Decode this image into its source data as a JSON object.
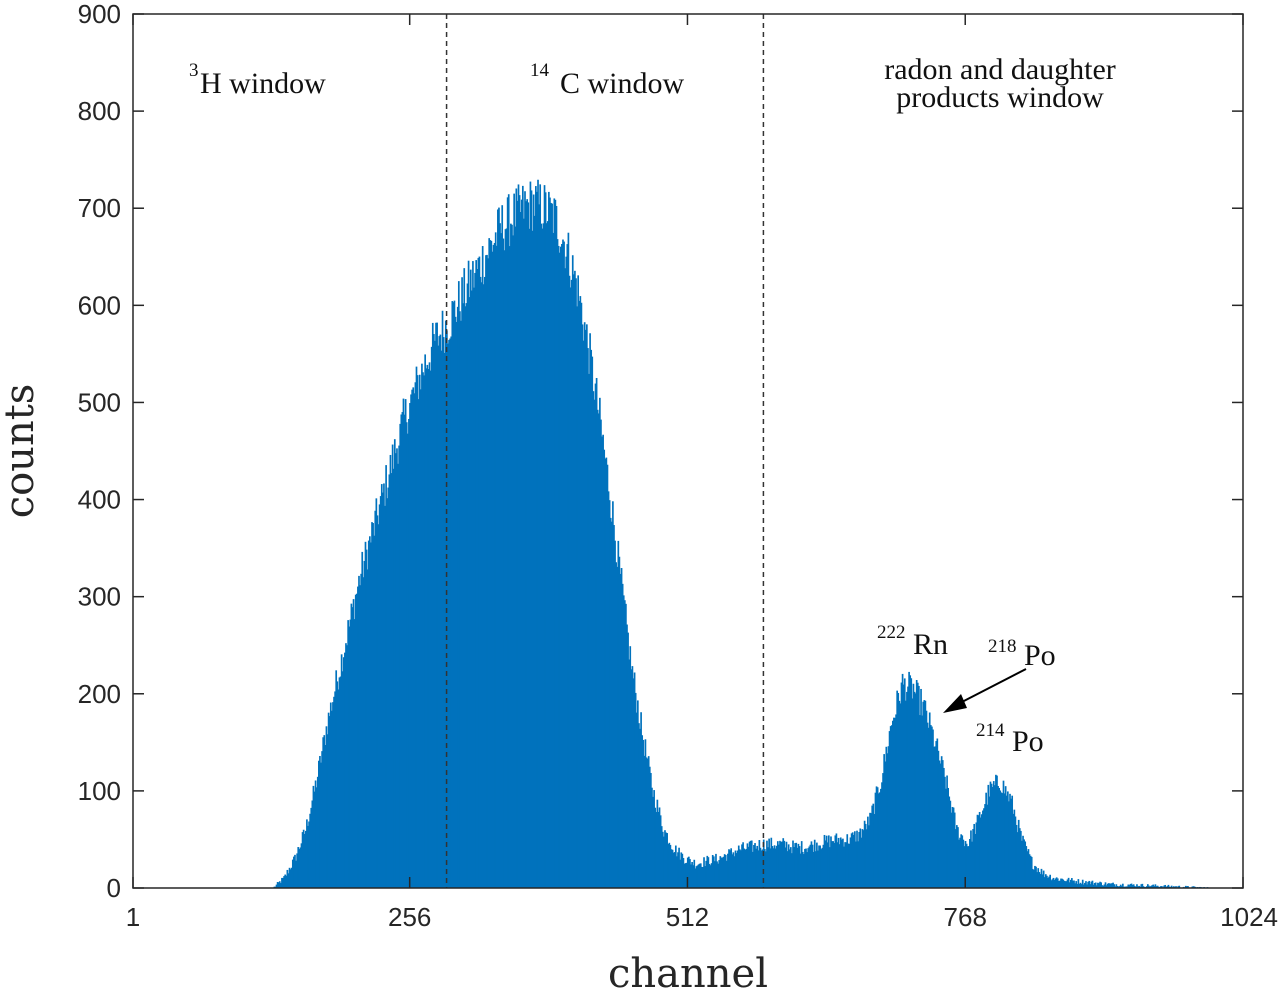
{
  "chart_data": {
    "type": "bar",
    "title": "",
    "xlabel": "channel",
    "ylabel": "counts",
    "xlim": [
      1,
      1024
    ],
    "ylim": [
      0,
      900
    ],
    "x_ticks": [
      "1",
      "256",
      "512",
      "768",
      "1024"
    ],
    "x_tick_values": [
      1,
      256,
      512,
      768,
      1024
    ],
    "y_ticks": [
      "0",
      "100",
      "200",
      "300",
      "400",
      "500",
      "600",
      "700",
      "800",
      "900"
    ],
    "y_tick_values": [
      0,
      100,
      200,
      300,
      400,
      500,
      600,
      700,
      800,
      900
    ],
    "bar_color": "#0072BD",
    "window_boundaries": [
      290,
      582
    ],
    "windows": [
      {
        "label_sup": "3",
        "label_main": "H window"
      },
      {
        "label_sup": "14",
        "label_main": "C window"
      },
      {
        "label_line1": "radon and daughter",
        "label_line2": "products window"
      }
    ],
    "peak_labels": [
      {
        "sup": "222",
        "main": "Rn",
        "channel": 728,
        "counts": 235
      },
      {
        "sup": "218",
        "main": "Po",
        "channel": 748,
        "counts": 175
      },
      {
        "sup": "214",
        "main": "Po",
        "channel": 810,
        "counts": 130
      }
    ],
    "series": [
      {
        "channels": [
          1,
          130,
          140,
          150,
          160,
          170,
          180,
          190,
          200,
          210,
          220,
          230,
          240,
          250,
          260,
          270,
          280,
          290,
          300,
          310,
          320,
          330,
          340,
          350,
          360,
          370,
          380,
          390,
          400,
          410,
          420,
          430,
          440,
          450,
          460,
          470,
          480,
          490,
          500,
          510,
          520,
          530,
          540,
          550,
          560,
          570,
          580,
          590,
          600,
          610,
          620,
          630,
          640,
          650,
          660,
          670,
          680,
          690,
          700,
          710,
          720,
          730,
          740,
          750,
          760,
          770,
          780,
          790,
          800,
          810,
          820,
          830,
          840,
          850,
          870,
          900,
          950,
          1000,
          1024
        ],
        "counts": [
          0,
          0,
          10,
          30,
          60,
          110,
          170,
          220,
          270,
          320,
          360,
          400,
          440,
          480,
          510,
          540,
          565,
          580,
          600,
          620,
          640,
          660,
          680,
          690,
          700,
          705,
          700,
          690,
          660,
          620,
          560,
          490,
          410,
          320,
          230,
          160,
          100,
          60,
          40,
          30,
          25,
          28,
          30,
          35,
          40,
          42,
          45,
          45,
          45,
          42,
          42,
          45,
          48,
          50,
          50,
          55,
          70,
          110,
          170,
          210,
          205,
          185,
          150,
          110,
          60,
          45,
          70,
          100,
          110,
          90,
          50,
          25,
          15,
          10,
          7,
          4,
          2,
          0,
          0
        ]
      }
    ]
  }
}
